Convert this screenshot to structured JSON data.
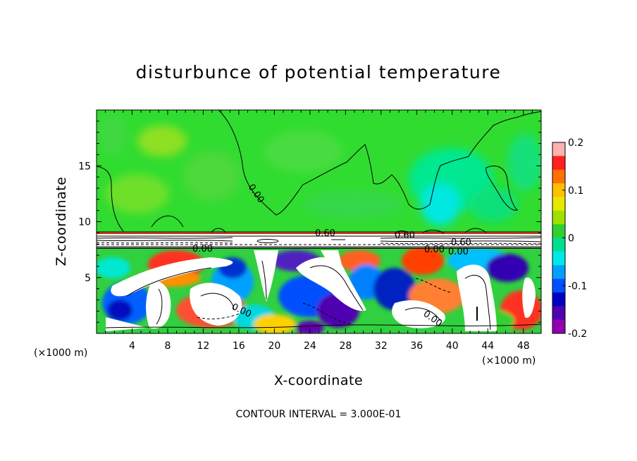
{
  "chart_data": {
    "type": "heatmap",
    "title": "disturbunce of potential temperature",
    "xlabel": "X-coordinate",
    "ylabel": "Z-coordinate",
    "x_unit": "(×1000 m)",
    "y_unit": "(×1000 m)",
    "xlim": [
      0,
      50
    ],
    "ylim": [
      0,
      20
    ],
    "x_ticks": [
      "4",
      "8",
      "12",
      "16",
      "20",
      "24",
      "28",
      "32",
      "36",
      "40",
      "44",
      "48"
    ],
    "y_ticks": [
      "5",
      "10",
      "15"
    ],
    "colorbar": {
      "range": [
        -0.2,
        0.2
      ],
      "ticks": [
        "0.2",
        "0.1",
        "0",
        "-0.1",
        "-0.2"
      ],
      "colors": [
        "#ffb0b0",
        "#ff2020",
        "#ff7000",
        "#ffc000",
        "#e8e800",
        "#a0e000",
        "#30d030",
        "#00e090",
        "#00e8e8",
        "#00a0ff",
        "#0050ff",
        "#0000c0",
        "#5000b0",
        "#9000b0"
      ]
    },
    "contour_labels": [
      "0.00",
      "0.00",
      "0.00",
      "0.00",
      "0.60",
      "0.60",
      "0.60",
      "0.00",
      "0.00"
    ],
    "contour_interval": "CONTOUR INTERVAL = 3.000E-01"
  }
}
